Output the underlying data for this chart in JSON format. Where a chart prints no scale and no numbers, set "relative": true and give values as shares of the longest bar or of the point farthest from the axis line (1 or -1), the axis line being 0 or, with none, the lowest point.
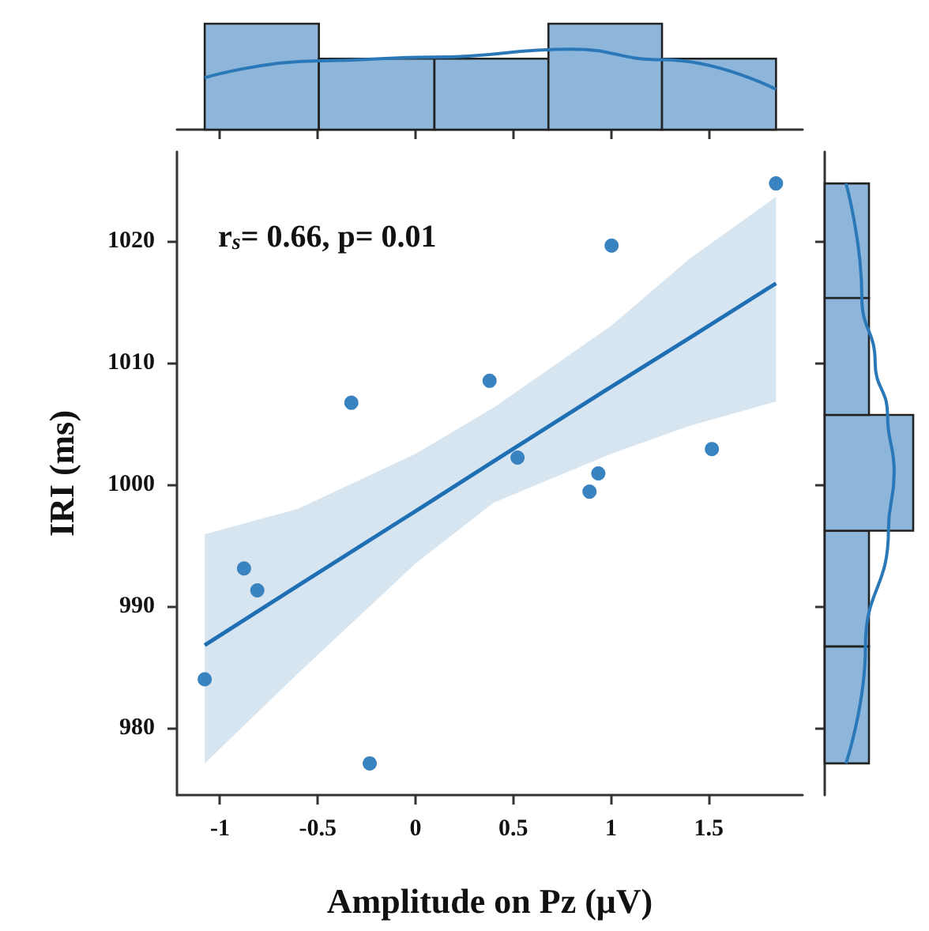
{
  "chart_data": [
    {
      "type": "histogram",
      "relative": true,
      "bins": [
        -1.078,
        -0.494,
        0.097,
        0.68,
        1.261,
        1.844
      ],
      "xlim": [
        -1.22,
        1.98
      ],
      "xticks": [
        -1,
        -0.5,
        0,
        0.5,
        1,
        1.5
      ],
      "tick_labels": false,
      "grid": false,
      "series": [
        {
          "type": "histogram",
          "color": "#8db6da",
          "values": [
            1,
            0.67,
            0.67,
            1,
            0.67
          ]
        },
        {
          "type": "line",
          "color": "#2a78b8",
          "x": [
            -1.078,
            -0.494,
            0.097,
            0.8,
            1.261,
            1.844
          ],
          "values": [
            0.49,
            0.65,
            0.685,
            0.76,
            0.66,
            0.38
          ]
        }
      ]
    },
    {
      "type": "scatter",
      "xlabel": "Amplitude on Pz (μV)",
      "ylabel": "IRI (ms)",
      "xlim": [
        -1.22,
        1.98
      ],
      "ylim": [
        974.5,
        1027.3
      ],
      "xticks": [
        -1,
        -0.5,
        0,
        0.5,
        1,
        1.5
      ],
      "yticks": [
        980,
        990,
        1000,
        1010,
        1020
      ],
      "grid": false,
      "annotations": [
        "r$_{s}$= 0.66, p= 0.01"
      ],
      "series": [
        {
          "type": "line",
          "color": "#1f6fb4",
          "x": [
            -1.078,
            -0.6,
            0,
            0.4,
            1.0,
            1.4,
            1.844
          ],
          "values": [
            986.8,
            991.7,
            997.8,
            1001.9,
            1008.0,
            1012.0,
            1016.5
          ],
          "lower": [
            977.1,
            984.5,
            993.5,
            998.5,
            1002.5,
            1004.8,
            1006.8
          ],
          "upper": [
            995.9,
            998.0,
            1002.5,
            1006.3,
            1013.0,
            1018.5,
            1023.6
          ]
        },
        {
          "type": "scatter",
          "marker": "circle",
          "color": "#3a83c1",
          "x": [
            -1.078,
            -0.877,
            -0.809,
            -0.328,
            -0.234,
            0.379,
            0.522,
            0.89,
            0.935,
            1.003,
            1.516,
            1.844
          ],
          "values": [
            984.0,
            993.1,
            991.3,
            1006.7,
            977.1,
            1008.5,
            1002.2,
            999.4,
            1000.9,
            1019.6,
            1002.9,
            1024.7
          ]
        }
      ]
    },
    {
      "type": "histogram",
      "relative": true,
      "orientation": "horizontal",
      "bins": [
        977.1,
        986.7,
        996.2,
        1005.7,
        1015.3,
        1024.7
      ],
      "ylim": [
        974.5,
        1027.3
      ],
      "yticks": [
        980,
        990,
        1000,
        1010,
        1020
      ],
      "tick_labels": false,
      "grid": false,
      "series": [
        {
          "type": "histogram",
          "color": "#8db6da",
          "values": [
            0.5,
            0.5,
            1,
            0.5,
            0.5
          ]
        },
        {
          "type": "line",
          "color": "#2a78b8",
          "x": [
            977.1,
            986.7,
            996.2,
            1001,
            1005.7,
            1010,
            1015.3,
            1024.7
          ],
          "values": [
            0.24,
            0.46,
            0.72,
            0.785,
            0.71,
            0.57,
            0.42,
            0.24
          ]
        }
      ]
    }
  ]
}
